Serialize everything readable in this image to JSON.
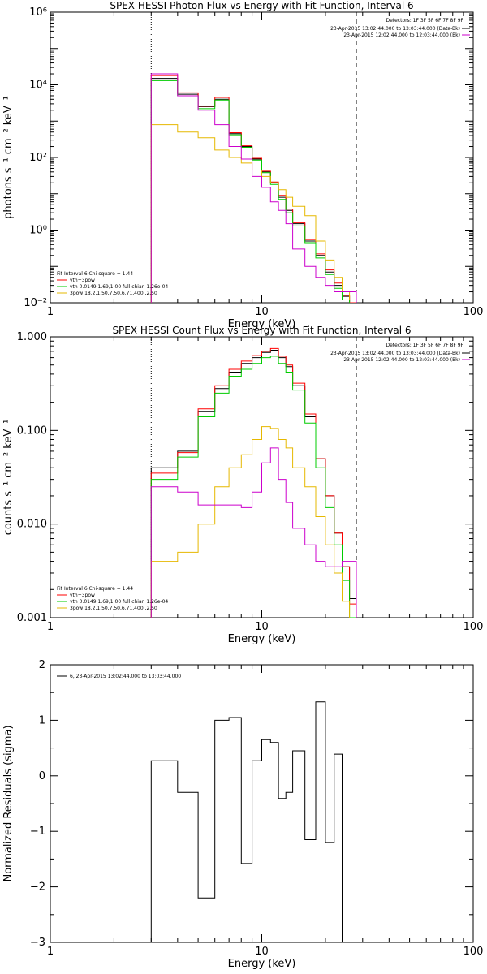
{
  "chart_data": [
    {
      "type": "line",
      "title": "SPEX HESSI Photon Flux vs Energy with Fit Function, Interval 6",
      "xlabel": "Energy (keV)",
      "ylabel": "photons s⁻¹ cm⁻² keV⁻¹",
      "xlog": true,
      "ylog": true,
      "xlim": [
        1,
        100
      ],
      "ylim": [
        0.01,
        1000000
      ],
      "x_ticks": [
        "1",
        "10",
        "100"
      ],
      "y_ticks": [
        "10⁻²",
        "10⁰",
        "10²",
        "10⁴",
        "10⁶"
      ],
      "fit_range_keV": [
        3,
        28
      ],
      "detectors_text": "Detectors: 1F 3F 5F 6F 7F 8F 9F",
      "data_legend": [
        {
          "label": "23-Apr-2015 13:02:44.000 to 13:03:44.000 (Data-Bk)",
          "color": "#000000"
        },
        {
          "label": "23-Apr-2015 12:02:44.000 to 12:03:44.000 (Bk)",
          "color": "#cc00cc"
        }
      ],
      "fit_legend": [
        {
          "label": "Fit Interval 6   Chi-square = 1.44",
          "color": "#000000"
        },
        {
          "label": "vth+3pow",
          "color": "#ff0000"
        },
        {
          "label": "vth 0.0149,1.69,1.00  full chian 1.26e-04",
          "color": "#00cc00"
        },
        {
          "label": "3pow 18.2,1.50,7.50,6.71,400.,2.50",
          "color": "#e6b800"
        }
      ],
      "bin_edges": [
        3,
        4,
        5,
        6,
        7,
        8,
        9,
        10,
        11,
        12,
        13,
        14,
        16,
        18,
        20,
        22,
        24,
        26,
        28
      ],
      "series": [
        {
          "name": "Data-Bk",
          "color": "#000000",
          "values": [
            15000,
            5500,
            2500,
            4000,
            450,
            200,
            90,
            40,
            20,
            8,
            3.5,
            1.5,
            0.5,
            0.2,
            0.07,
            0.03,
            0.015,
            0.01
          ]
        },
        {
          "name": "vth+3pow",
          "color": "#ff0000",
          "values": [
            18000,
            6000,
            2600,
            4500,
            480,
            210,
            95,
            42,
            21,
            9,
            3.8,
            1.6,
            0.55,
            0.22,
            0.08,
            0.035,
            0.016,
            0.01
          ]
        },
        {
          "name": "vth",
          "color": "#00cc00",
          "values": [
            13000,
            5000,
            2200,
            3800,
            420,
            190,
            85,
            38,
            18,
            7,
            3,
            1.3,
            0.45,
            0.17,
            0.06,
            0.025,
            0.012,
            0.009
          ]
        },
        {
          "name": "3pow",
          "color": "#e6b800",
          "values": [
            800,
            500,
            350,
            160,
            100,
            70,
            45,
            30,
            20,
            13,
            8,
            4.5,
            2.5,
            0.5,
            0.15,
            0.05,
            0.02,
            0.012
          ]
        },
        {
          "name": "Bk",
          "color": "#cc00cc",
          "values": [
            20000,
            5000,
            2000,
            800,
            200,
            90,
            30,
            15,
            6,
            3.5,
            1.5,
            0.3,
            0.1,
            0.05,
            0.03,
            0.02,
            0.02,
            0.02
          ]
        }
      ]
    },
    {
      "type": "line",
      "title": "SPEX HESSI Count Flux vs Energy with Fit Function, Interval 6",
      "xlabel": "Energy (keV)",
      "ylabel": "counts s⁻¹ cm⁻² keV⁻¹",
      "xlog": true,
      "ylog": true,
      "xlim": [
        1,
        100
      ],
      "ylim": [
        0.001,
        1
      ],
      "x_ticks": [
        "1",
        "10",
        "100"
      ],
      "y_ticks": [
        "0.001",
        "0.010",
        "0.100",
        "1.000"
      ],
      "fit_range_keV": [
        3,
        28
      ],
      "detectors_text": "Detectors: 1F 3F 5F 6F 7F 8F 9F",
      "data_legend": [
        {
          "label": "23-Apr-2015 13:02:44.000 to 13:03:44.000 (Data-Bk)",
          "color": "#000000"
        },
        {
          "label": "23-Apr-2015 12:02:44.000 to 12:03:44.000 (Bk)",
          "color": "#cc00cc"
        }
      ],
      "fit_legend": [
        {
          "label": "Fit Interval 6   Chi-square = 1.44",
          "color": "#000000"
        },
        {
          "label": "vth+3pow",
          "color": "#ff0000"
        },
        {
          "label": "vth 0.0149,1.69,1.00  full chian 1.26e-04",
          "color": "#00cc00"
        },
        {
          "label": "3pow 18.2,1.50,7.50,6.71,400.,2.50",
          "color": "#e6b800"
        }
      ],
      "bin_edges": [
        3,
        4,
        5,
        6,
        7,
        8,
        9,
        10,
        11,
        12,
        13,
        14,
        16,
        18,
        20,
        22,
        24,
        26,
        28
      ],
      "series": [
        {
          "name": "Data-Bk",
          "color": "#000000",
          "values": [
            0.04,
            0.06,
            0.16,
            0.28,
            0.42,
            0.52,
            0.6,
            0.68,
            0.72,
            0.6,
            0.48,
            0.3,
            0.14,
            0.05,
            0.02,
            0.008,
            0.0035,
            0.0016
          ]
        },
        {
          "name": "vth+3pow",
          "color": "#ff0000",
          "values": [
            0.035,
            0.058,
            0.17,
            0.3,
            0.45,
            0.55,
            0.63,
            0.7,
            0.75,
            0.62,
            0.5,
            0.32,
            0.15,
            0.05,
            0.02,
            0.008,
            0.0035,
            0.0014
          ]
        },
        {
          "name": "vth",
          "color": "#00cc00",
          "values": [
            0.03,
            0.052,
            0.14,
            0.25,
            0.38,
            0.45,
            0.52,
            0.6,
            0.62,
            0.52,
            0.42,
            0.27,
            0.12,
            0.04,
            0.015,
            0.006,
            0.0025,
            0.001
          ]
        },
        {
          "name": "3pow",
          "color": "#e6b800",
          "values": [
            0.004,
            0.005,
            0.01,
            0.025,
            0.04,
            0.055,
            0.08,
            0.11,
            0.105,
            0.08,
            0.065,
            0.04,
            0.025,
            0.012,
            0.006,
            0.003,
            0.0015,
            0.0008
          ]
        },
        {
          "name": "Bk",
          "color": "#cc00cc",
          "values": [
            0.025,
            0.022,
            0.016,
            0.016,
            0.016,
            0.015,
            0.022,
            0.045,
            0.065,
            0.03,
            0.017,
            0.009,
            0.006,
            0.004,
            0.0035,
            0.0035,
            0.004,
            0.004
          ]
        }
      ]
    },
    {
      "type": "line",
      "title": "",
      "xlabel": "Energy (keV)",
      "ylabel": "Normalized Residuals (sigma)",
      "xlog": true,
      "ylog": false,
      "xlim": [
        1,
        100
      ],
      "ylim": [
        -3,
        2
      ],
      "x_ticks": [
        "1",
        "10",
        "100"
      ],
      "y_ticks": [
        "−3",
        "−2",
        "−1",
        "0",
        "1",
        "2"
      ],
      "legend": [
        {
          "label": "6, 23-Apr-2015 13:02:44.000 to 13:03:44.000",
          "color": "#000000"
        }
      ],
      "bin_edges": [
        3,
        4,
        5,
        6,
        7,
        8,
        9,
        10,
        11,
        12,
        13,
        14,
        16,
        18,
        20,
        22,
        24,
        26,
        28
      ],
      "series": [
        {
          "name": "residuals",
          "color": "#000000",
          "values": [
            0.27,
            -0.3,
            -2.2,
            1.0,
            1.05,
            -1.58,
            0.27,
            0.65,
            0.6,
            -0.41,
            -0.3,
            0.45,
            -1.15,
            1.33,
            -1.2,
            0.39,
            -3.1,
            -3.1
          ]
        }
      ]
    }
  ]
}
